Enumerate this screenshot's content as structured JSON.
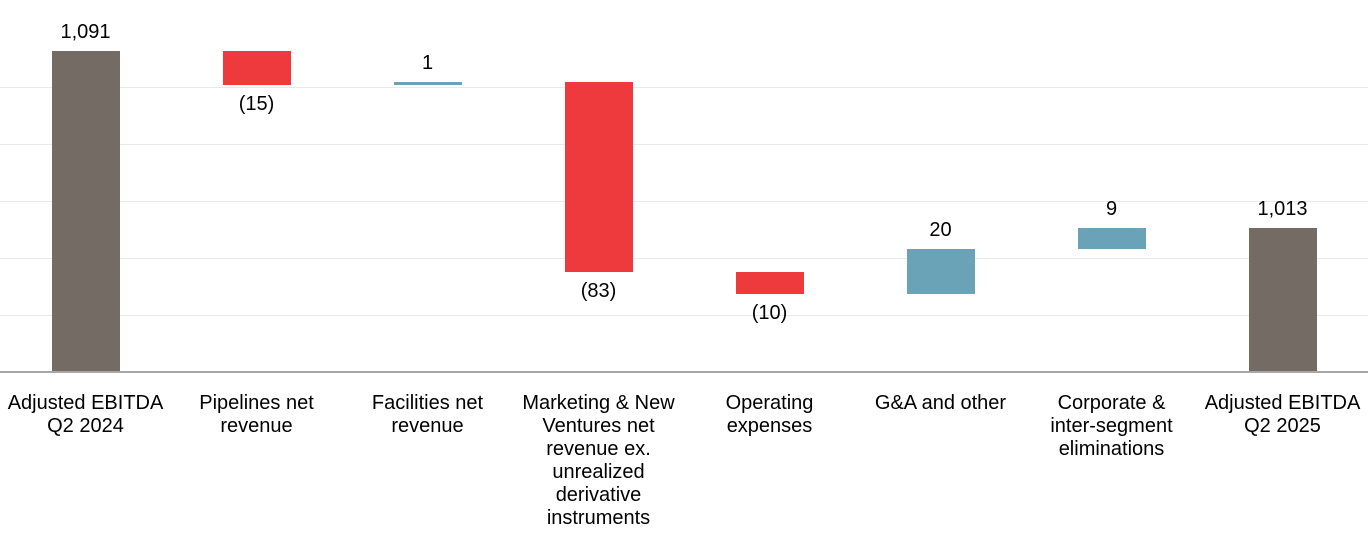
{
  "chart_data": {
    "type": "bar",
    "subtype": "waterfall",
    "title": "",
    "xlabel": "",
    "ylabel": "",
    "legend": "none",
    "grid": "horizontal",
    "y_axis_tick_labels_visible": false,
    "axis": {
      "baseline_value": 950,
      "top_value": 1100,
      "gridline_step": 25,
      "gridline_values": [
        975,
        1000,
        1025,
        1050,
        1075
      ]
    },
    "categories": [
      {
        "label": "Adjusted EBITDA\nQ2 2024",
        "value": 1091,
        "display": "1,091",
        "kind": "total"
      },
      {
        "label": "Pipelines net\nrevenue",
        "value": -15,
        "display": "(15)",
        "kind": "decrease"
      },
      {
        "label": "Facilities net\nrevenue",
        "value": 1,
        "display": "1",
        "kind": "increase"
      },
      {
        "label": "Marketing & New\nVentures net\nrevenue ex.\nunrealized\nderivative\ninstruments",
        "value": -83,
        "display": "(83)",
        "kind": "decrease"
      },
      {
        "label": "Operating\nexpenses",
        "value": -10,
        "display": "(10)",
        "kind": "decrease"
      },
      {
        "label": "G&A and other",
        "value": 20,
        "display": "20",
        "kind": "increase"
      },
      {
        "label": "Corporate &\ninter-segment\neliminations",
        "value": 9,
        "display": "9",
        "kind": "increase"
      },
      {
        "label": "Adjusted EBITDA\nQ2 2025",
        "value": 1013,
        "display": "1,013",
        "kind": "total"
      }
    ],
    "colors": {
      "total": "#746B64",
      "decrease": "#EE3A3D",
      "increase": "#6AA2B7",
      "gridline": "#E9E9E9",
      "axis_line": "#A6A6A6",
      "label_text": "#000000",
      "background": "#FFFFFF"
    }
  }
}
